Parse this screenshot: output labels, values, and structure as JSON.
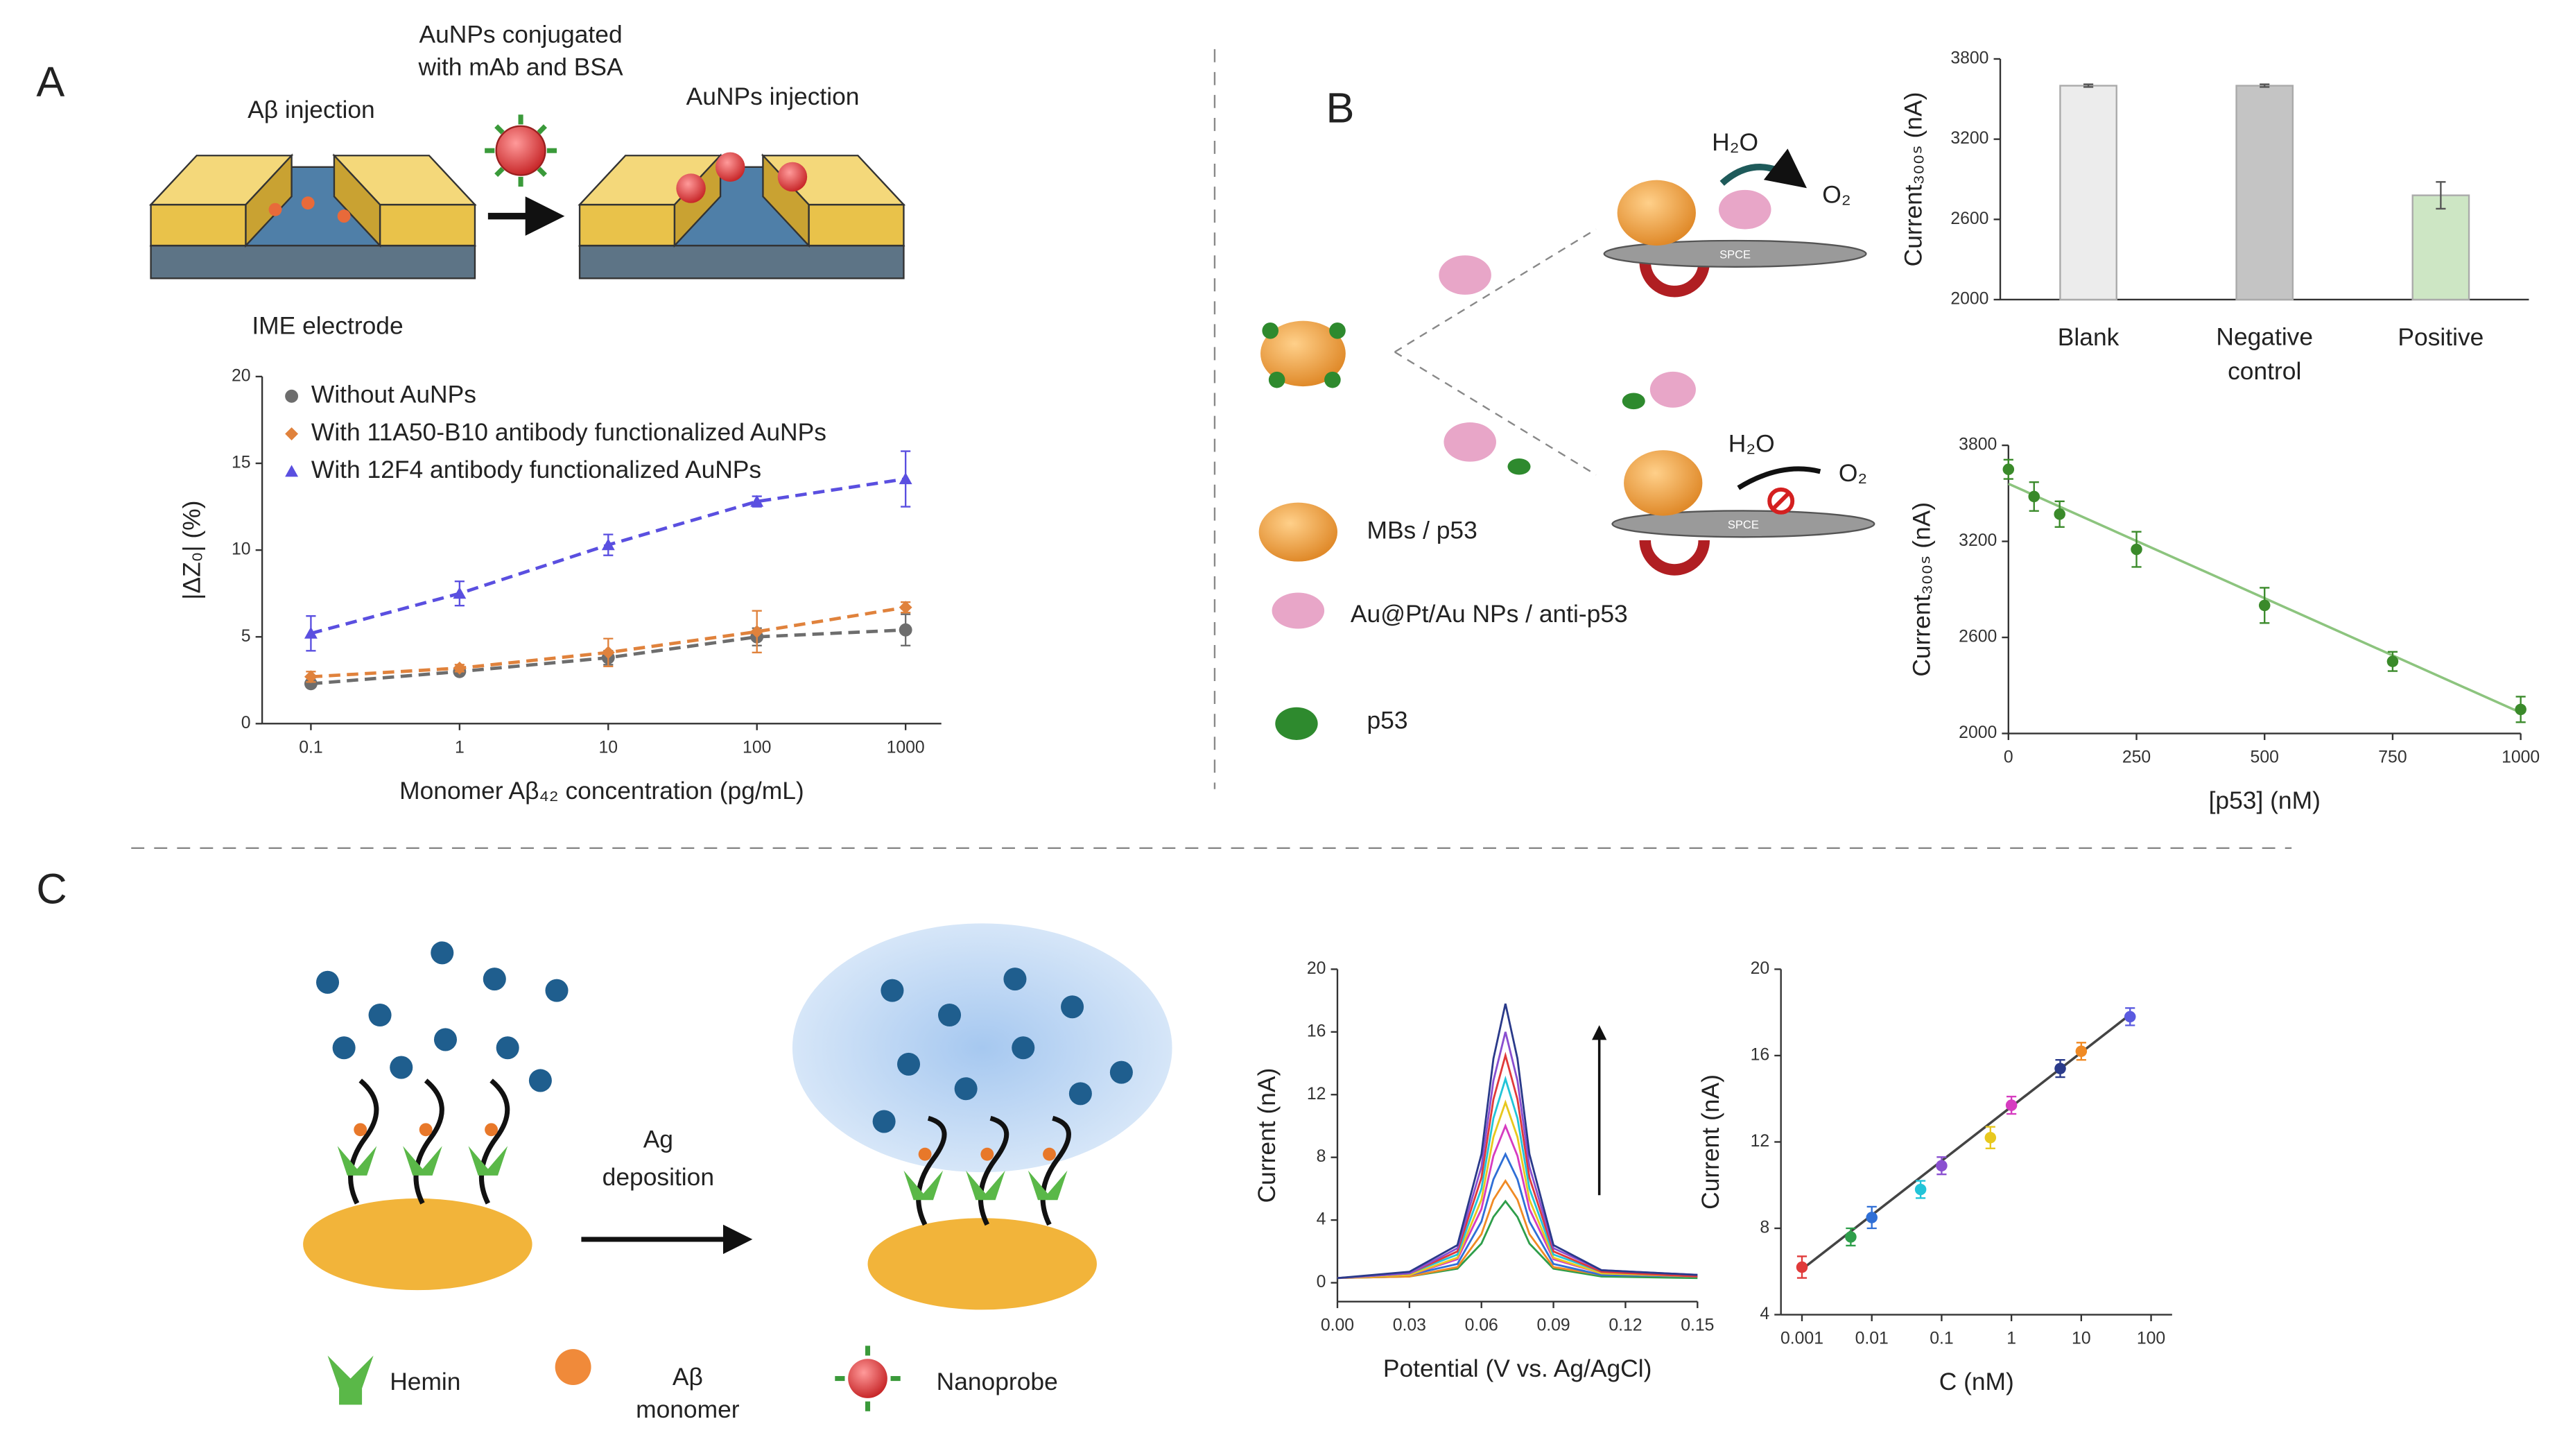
{
  "labels": {
    "panel_a": "A",
    "panel_b": "B",
    "panel_c": "C",
    "aunps_conj_1": "AuNPs conjugated",
    "aunps_conj_2": "with mAb and BSA",
    "ab_injection": "Aβ injection",
    "aunps_injection": "AuNPs injection",
    "ime_electrode": "IME electrode",
    "h2o_top": "H₂O",
    "o2_top": "O₂",
    "h2o_bottom": "H₂O",
    "o2_bottom": "O₂",
    "spce_top": "SPCE",
    "spce_bottom": "SPCE",
    "mbs": "MBs / p53",
    "aupt": "Au@Pt/Au NPs / anti-p53",
    "p53": "p53",
    "ag_1": "Ag",
    "ag_2": "deposition",
    "hemin": "Hemin",
    "ab_1": "Aβ",
    "ab_2": "monomer",
    "nanoprobe": "Nanoprobe"
  },
  "chart_data": [
    {
      "type": "line",
      "xscale": "log",
      "x": [
        0.1,
        1,
        10,
        100,
        1000
      ],
      "xlim": [
        0.047,
        1740
      ],
      "xticks": [
        0.1,
        1,
        10,
        100,
        1000
      ],
      "ylim": [
        0,
        20
      ],
      "yticks": [
        0,
        5,
        10,
        15,
        20
      ],
      "xlabel": "Monomer Aβ₄₂ concentration (pg/mL)",
      "ylabel": "|ΔZ₀| (%)",
      "legend": "upper left",
      "line_style": "dashed",
      "series": [
        {
          "name": "Without AuNPs",
          "color": "#6d6d6d",
          "marker": "circle",
          "values": [
            2.3,
            3.0,
            3.8,
            5.0,
            5.4
          ],
          "errors": [
            0.2,
            0.2,
            0.4,
            0.5,
            0.9
          ]
        },
        {
          "name": "With 11A50-B10 antibody functionalized AuNPs",
          "color": "#e0823c",
          "marker": "diamond",
          "values": [
            2.7,
            3.2,
            4.1,
            5.3,
            6.7
          ],
          "errors": [
            0.3,
            0.2,
            0.8,
            1.2,
            0.3
          ]
        },
        {
          "name": "With 12F4 antibody functionalized AuNPs",
          "color": "#5a4fe0",
          "marker": "triangle",
          "values": [
            5.2,
            7.5,
            10.3,
            12.8,
            14.1
          ],
          "errors": [
            1.0,
            0.7,
            0.6,
            0.3,
            1.6
          ]
        }
      ]
    },
    {
      "type": "bar",
      "categories": [
        "Blank",
        "Negative control",
        "Positive"
      ],
      "values": [
        3600,
        3600,
        2780
      ],
      "errors": [
        10,
        10,
        100
      ],
      "colors": [
        "#ececec",
        "#c4c4c4",
        "#cde6c4"
      ],
      "ylim": [
        2000,
        3800
      ],
      "yticks": [
        2000,
        2600,
        3200,
        3800
      ],
      "ylabel": "Current₃₀₀ₛ (nA)"
    },
    {
      "type": "scatter",
      "x": [
        0,
        50,
        100,
        250,
        500,
        750,
        1000
      ],
      "values": [
        3650,
        3480,
        3370,
        3150,
        2800,
        2450,
        2150
      ],
      "errors": [
        60,
        90,
        80,
        110,
        110,
        60,
        80
      ],
      "color": "#3a8a2a",
      "fit": {
        "x": [
          0,
          1000
        ],
        "values": [
          3560,
          2130
        ],
        "color": "#8cc47e"
      },
      "xlim": [
        0,
        1000
      ],
      "xticks": [
        0,
        250,
        500,
        750,
        1000
      ],
      "ylim": [
        2000,
        3800
      ],
      "yticks": [
        2000,
        2600,
        3200,
        3800
      ],
      "xlabel": "[p53] (nM)",
      "ylabel": "Current₃₀₀ₛ (nA)"
    },
    {
      "type": "line",
      "x": [
        0,
        0.03,
        0.05,
        0.06,
        0.065,
        0.07,
        0.075,
        0.08,
        0.09,
        0.11,
        0.15
      ],
      "xlim": [
        0,
        0.15
      ],
      "xticks": [
        {
          "value": 0,
          "label": "0.00"
        },
        0.03,
        0.06,
        0.09,
        0.12,
        0.15
      ],
      "ylim": [
        -1.2,
        20
      ],
      "yticks": [
        0,
        4,
        8,
        12,
        16,
        20
      ],
      "xlabel": "Potential (V vs. Ag/AgCl)",
      "ylabel": "Current (nA)",
      "series": [
        {
          "color": "#2e9e4a",
          "values": [
            0.3,
            0.4,
            0.9,
            2.5,
            4.2,
            5.2,
            4.2,
            2.5,
            0.9,
            0.4,
            0.3
          ]
        },
        {
          "color": "#f08a24",
          "values": [
            0.3,
            0.4,
            1.0,
            3.1,
            5.3,
            6.5,
            5.3,
            3.1,
            1.0,
            0.5,
            0.4
          ]
        },
        {
          "color": "#2f6fd6",
          "values": [
            0.3,
            0.5,
            1.2,
            3.9,
            6.6,
            8.2,
            6.6,
            3.9,
            1.2,
            0.5,
            0.4
          ]
        },
        {
          "color": "#d63cc0",
          "values": [
            0.3,
            0.5,
            1.5,
            4.7,
            8.1,
            10,
            8.1,
            4.7,
            1.5,
            0.6,
            0.4
          ]
        },
        {
          "color": "#e8c81e",
          "values": [
            0.3,
            0.5,
            1.6,
            5.3,
            9.3,
            11.5,
            9.3,
            5.3,
            1.6,
            0.6,
            0.4
          ]
        },
        {
          "color": "#22c4d8",
          "values": [
            0.3,
            0.6,
            1.8,
            6.0,
            10.5,
            13,
            10.5,
            6.0,
            1.8,
            0.7,
            0.4
          ]
        },
        {
          "color": "#e03a3a",
          "values": [
            0.3,
            0.6,
            2.0,
            6.7,
            11.7,
            14.5,
            11.7,
            6.7,
            2.0,
            0.7,
            0.4
          ]
        },
        {
          "color": "#8a4fd0",
          "values": [
            0.3,
            0.6,
            2.2,
            7.4,
            12.9,
            16,
            12.9,
            7.4,
            2.2,
            0.8,
            0.5
          ]
        },
        {
          "color": "#2a3a8a",
          "values": [
            0.3,
            0.7,
            2.4,
            8.2,
            14.3,
            17.8,
            14.3,
            8.2,
            2.4,
            0.8,
            0.5
          ]
        }
      ]
    },
    {
      "type": "scatter",
      "xscale": "log",
      "x": [
        0.001,
        0.005,
        0.01,
        0.05,
        0.1,
        0.5,
        1,
        5,
        10,
        50
      ],
      "values": [
        6.2,
        7.6,
        8.5,
        9.8,
        10.9,
        12.2,
        13.7,
        15.4,
        16.2,
        17.8
      ],
      "errors": [
        0.5,
        0.4,
        0.5,
        0.4,
        0.4,
        0.5,
        0.4,
        0.4,
        0.4,
        0.4
      ],
      "colors": [
        "#e03a3a",
        "#2e9e4a",
        "#2f6fd6",
        "#22c4d8",
        "#8a4fd0",
        "#e8c81e",
        "#d63cc0",
        "#2a3a8a",
        "#f08a24",
        "#5a5ae0"
      ],
      "fit": {
        "x": [
          0.001,
          50
        ],
        "values": [
          6.1,
          17.9
        ],
        "color": "#444"
      },
      "xlim": [
        0.0005,
        200
      ],
      "xticks": [
        0.001,
        0.01,
        0.1,
        1,
        10,
        100
      ],
      "ylim": [
        4,
        20
      ],
      "yticks": [
        4,
        8,
        12,
        16,
        20
      ],
      "xlabel": "C (nM)",
      "ylabel": "Current (nA)"
    }
  ]
}
